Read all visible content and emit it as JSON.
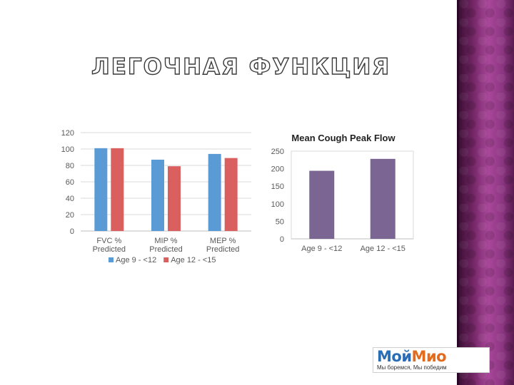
{
  "slide": {
    "title": "ЛЕГОЧНАЯ ФУНКЦИЯ",
    "logo": {
      "part1": "Мой",
      "part2": "Мио",
      "tagline": "Мы боремся, Мы победим"
    },
    "colors": {
      "side_panel": "#7a2a6c",
      "series_1": "#5b9bd5",
      "series_2": "#d9605e",
      "purple_bar": "#7b6693",
      "gridline": "#d9d9d9"
    }
  },
  "chart_data": [
    {
      "type": "bar",
      "title": "",
      "categories": [
        [
          "FVC %",
          "Predicted"
        ],
        [
          "MIP %",
          "Predicted"
        ],
        [
          "MEP %",
          "Predicted"
        ]
      ],
      "series": [
        {
          "name": "Age 9 - <12",
          "values": [
            101,
            87,
            94
          ],
          "color": "#5b9bd5"
        },
        {
          "name": "Age 12 - <15",
          "values": [
            101,
            79,
            89
          ],
          "color": "#d9605e"
        }
      ],
      "ylim": [
        0,
        120
      ],
      "yticks": [
        0,
        20,
        40,
        60,
        80,
        100,
        120
      ],
      "grid": true,
      "legend": "bottom"
    },
    {
      "type": "bar",
      "title": "Mean Cough Peak Flow",
      "categories": [
        [
          "Age 9 - <12"
        ],
        [
          "Age 12 - <15"
        ]
      ],
      "series": [
        {
          "values": [
            194,
            228
          ],
          "color": "#7b6693"
        }
      ],
      "ylim": [
        0,
        250
      ],
      "yticks": [
        0,
        50,
        100,
        150,
        200,
        250
      ],
      "grid": false,
      "legend": "none"
    }
  ]
}
